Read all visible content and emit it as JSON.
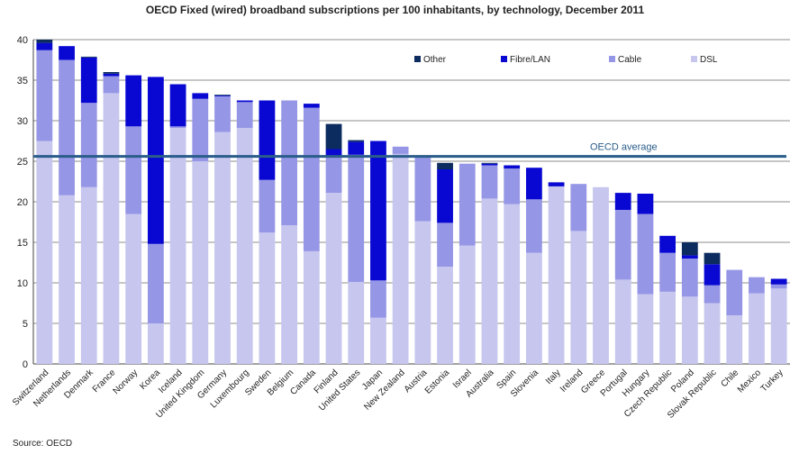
{
  "chart_data": {
    "type": "bar",
    "stacked": true,
    "title": "OECD Fixed (wired) broadband subscriptions per 100 inhabitants, by technology, December 2011",
    "source": "Source: OECD",
    "ylim": [
      0,
      40
    ],
    "yticks": [
      0,
      5,
      10,
      15,
      20,
      25,
      30,
      35,
      40
    ],
    "grid": true,
    "legend_position": "top-right",
    "categories": [
      "Switzerland",
      "Netherlands",
      "Denmark",
      "France",
      "Norway",
      "Korea",
      "Iceland",
      "United Kingdom",
      "Germany",
      "Luxembourg",
      "Sweden",
      "Belgium",
      "Canada",
      "Finland",
      "United States",
      "Japan",
      "New Zealand",
      "Austria",
      "Estonia",
      "Israel",
      "Australia",
      "Spain",
      "Slovenia",
      "Italy",
      "Ireland",
      "Greece",
      "Portugal",
      "Hungary",
      "Czech Republic",
      "Poland",
      "Slovak Republic",
      "Chile",
      "Mexico",
      "Turkey"
    ],
    "series": [
      {
        "name": "DSL",
        "color": "#c6c6ef",
        "values": [
          27.5,
          20.8,
          21.8,
          33.4,
          18.5,
          5.0,
          29.1,
          25.0,
          28.6,
          29.1,
          16.2,
          17.1,
          13.9,
          21.1,
          10.1,
          5.7,
          25.9,
          17.6,
          12.0,
          14.6,
          20.4,
          19.7,
          13.7,
          21.9,
          16.4,
          21.8,
          10.4,
          8.6,
          8.9,
          8.3,
          7.5,
          6.0,
          8.7,
          9.3
        ]
      },
      {
        "name": "Cable",
        "color": "#9696e6",
        "values": [
          11.2,
          16.7,
          10.4,
          2.1,
          10.8,
          9.8,
          0.2,
          7.7,
          4.4,
          3.2,
          6.5,
          15.4,
          17.7,
          4.4,
          15.7,
          4.6,
          0.9,
          8.1,
          5.4,
          10.1,
          4.1,
          4.4,
          6.6,
          0.0,
          5.8,
          0.0,
          8.6,
          9.9,
          4.8,
          4.7,
          2.2,
          5.6,
          2.0,
          0.5
        ]
      },
      {
        "name": "Fibre/LAN",
        "color": "#0808d2",
        "values": [
          0.9,
          1.7,
          5.6,
          0.3,
          6.3,
          20.6,
          5.2,
          0.7,
          0.1,
          0.2,
          9.8,
          0.0,
          0.5,
          1.0,
          1.6,
          17.2,
          0.0,
          0.0,
          6.6,
          0.0,
          0.2,
          0.4,
          3.9,
          0.5,
          0.0,
          0.0,
          2.1,
          2.5,
          2.1,
          0.4,
          2.6,
          0.0,
          0.0,
          0.7
        ]
      },
      {
        "name": "Other",
        "color": "#0c2b5e",
        "values": [
          0.4,
          0.0,
          0.1,
          0.2,
          0.0,
          0.0,
          0.0,
          0.0,
          0.1,
          0.0,
          0.0,
          0.0,
          0.0,
          3.1,
          0.2,
          0.0,
          0.0,
          0.0,
          0.8,
          0.0,
          0.1,
          0.0,
          0.0,
          0.0,
          0.0,
          0.0,
          0.0,
          0.0,
          0.0,
          1.6,
          1.4,
          0.0,
          0.0,
          0.0
        ]
      }
    ],
    "reference_line": {
      "label": "OECD average",
      "value": 25.6,
      "color": "#2a5d8a"
    }
  }
}
